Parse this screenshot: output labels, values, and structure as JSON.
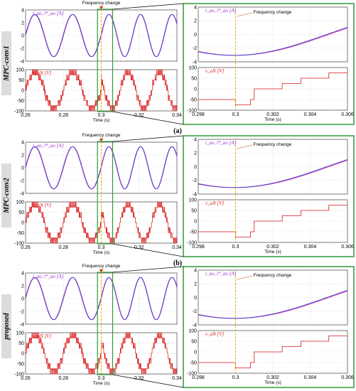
{
  "figure": {
    "rows": [
      {
        "side_label": "MPC-conv1",
        "panel_label": "(a)"
      },
      {
        "side_label": "MPC-conv2",
        "panel_label": "(b)"
      },
      {
        "side_label": "proposed",
        "panel_label": "(c)"
      }
    ],
    "annotation": "Frequency change",
    "current_label": "i_ao, i*_ao [A]",
    "voltage_label": "v_aN [V]",
    "xlabel": "Time (s)",
    "colors": {
      "measured": "#3a3ad8",
      "reference": "#e0309a",
      "voltage": "#d81818",
      "frame": "#2e9a3a",
      "marker": "#e6b800",
      "arrow": "#c04a10"
    }
  },
  "chart_data": [
    {
      "type": "line",
      "title": "",
      "xlabel": "Time (s)",
      "xlim": [
        0.26,
        0.34
      ],
      "xticks": [
        "0.26",
        "0.28",
        "0.3",
        "0.32",
        "0.34"
      ],
      "frequency_change_at": 0.3,
      "subplots": [
        {
          "ylabel": "i_ao, i*_ao [A]",
          "ylim": [
            -4,
            4
          ],
          "yticks": [
            "-4",
            "-2",
            "0",
            "2",
            "4"
          ],
          "series": [
            {
              "name": "i_ao",
              "x": [
                0.26,
                0.27,
                0.28,
                0.29,
                0.3,
                0.31,
                0.32,
                0.33,
                0.34
              ],
              "y": [
                0,
                3.3,
                0,
                -3.3,
                -2.8,
                3.2,
                -0.5,
                3.3,
                0.8
              ]
            },
            {
              "name": "i*_ao",
              "x": [
                0.26,
                0.27,
                0.28,
                0.29,
                0.3,
                0.31,
                0.32,
                0.33,
                0.34
              ],
              "y": [
                0,
                3.2,
                0,
                -3.2,
                -2.7,
                3.1,
                -0.5,
                3.2,
                0.8
              ]
            }
          ]
        },
        {
          "ylabel": "v_aN [V]",
          "ylim": [
            -100,
            100
          ],
          "yticks": [
            "-100",
            "-50",
            "0",
            "50",
            "100"
          ],
          "series": [
            {
              "name": "v_aN",
              "x": [
                0.26,
                0.265,
                0.27,
                0.275,
                0.28,
                0.285,
                0.29,
                0.295,
                0.3,
                0.305,
                0.31,
                0.315,
                0.32,
                0.325,
                0.33,
                0.335,
                0.34
              ],
              "y": [
                0,
                50,
                75,
                50,
                0,
                -50,
                -75,
                -50,
                -60,
                25,
                75,
                25,
                -50,
                -50,
                75,
                50,
                0
              ]
            }
          ]
        }
      ]
    },
    {
      "type": "line",
      "title": "",
      "xlabel": "Time (s)",
      "xlim": [
        0.298,
        0.306
      ],
      "xticks": [
        "0.298",
        "0.3",
        "0.302",
        "0.304",
        "0.306"
      ],
      "frequency_change_at": 0.3,
      "subplots": [
        {
          "ylabel": "i_ao, i*_ao [A]",
          "ylim": [
            -4,
            4
          ],
          "yticks": [
            "-4",
            "-2",
            "0",
            "2",
            "4"
          ],
          "series": [
            {
              "name": "i_ao",
              "x": [
                0.298,
                0.299,
                0.3,
                0.301,
                0.302,
                0.303,
                0.304,
                0.305,
                0.306
              ],
              "y": [
                -2.5,
                -2.9,
                -3.1,
                -3.0,
                -2.2,
                -0.8,
                0.6,
                1.9,
                2.9
              ]
            },
            {
              "name": "i*_ao",
              "x": [
                0.298,
                0.299,
                0.3,
                0.301,
                0.302,
                0.303,
                0.304,
                0.305,
                0.306
              ],
              "y": [
                -2.3,
                -2.8,
                -3.0,
                -2.9,
                -2.1,
                -0.7,
                0.7,
                2.0,
                3.0
              ]
            }
          ]
        },
        {
          "ylabel": "v_aN [V]",
          "ylim": [
            -100,
            100
          ],
          "yticks": [
            "-100",
            "-50",
            "0",
            "50",
            "100"
          ],
          "series": [
            {
              "name": "v_aN",
              "x": [
                0.298,
                0.2995,
                0.3,
                0.3008,
                0.301,
                0.302,
                0.3025,
                0.303,
                0.3035,
                0.304,
                0.305,
                0.306
              ],
              "y": [
                -50,
                -50,
                -75,
                -50,
                0,
                0,
                25,
                25,
                50,
                50,
                75,
                75
              ]
            }
          ]
        }
      ]
    }
  ]
}
